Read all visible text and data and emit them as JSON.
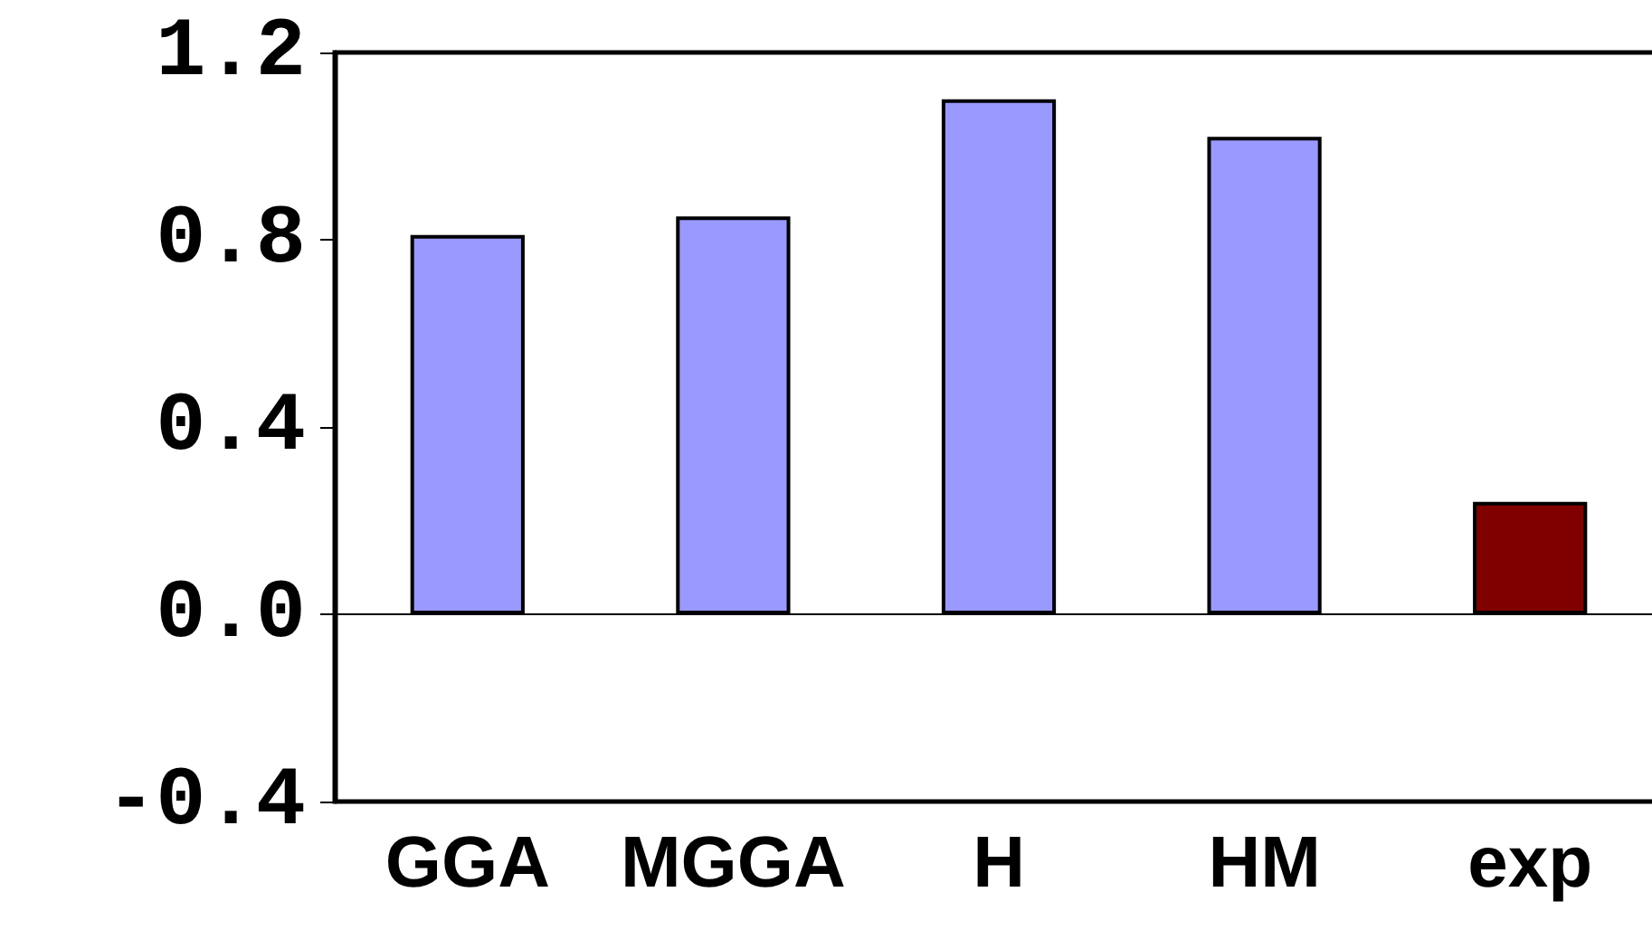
{
  "chart_data": {
    "type": "bar",
    "categories": [
      "GGA",
      "MGGA",
      "H",
      "HM",
      "exp"
    ],
    "values": [
      0.81,
      0.85,
      1.1,
      1.02,
      0.24
    ],
    "colors": [
      "#9999ff",
      "#9999ff",
      "#9999ff",
      "#9999ff",
      "#800000"
    ],
    "ylim": [
      -0.4,
      1.2
    ],
    "yticks": [
      -0.4,
      {
        "value": 0,
        "label": "0.0"
      },
      0.4,
      0.8,
      1.2
    ]
  }
}
